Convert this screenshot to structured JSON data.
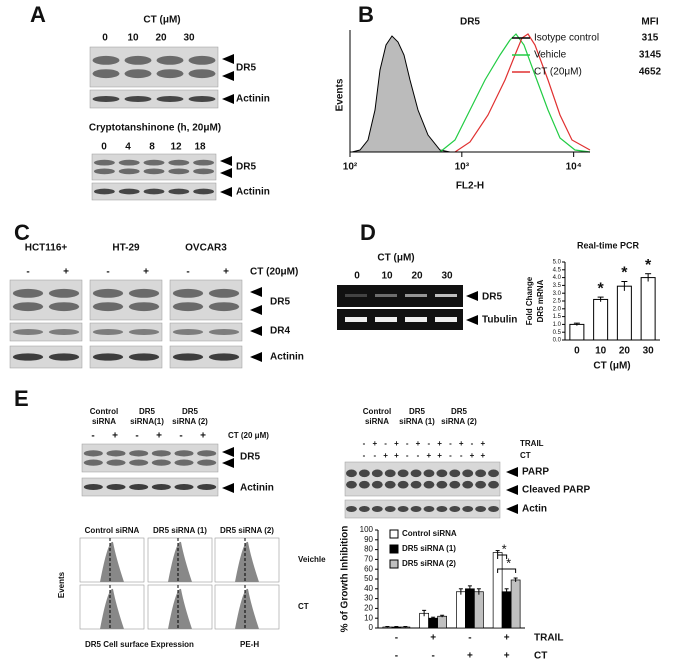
{
  "panel_a": {
    "letter": "A",
    "ct_label": "CT (μM)",
    "doses": [
      "0",
      "10",
      "20",
      "30"
    ],
    "bands": [
      "DR5",
      "Actinin"
    ],
    "time_label": "Cryptotanshinone (h, 20μM)",
    "times": [
      "0",
      "4",
      "8",
      "12",
      "18"
    ],
    "time_bands": [
      "DR5",
      "Actinin"
    ]
  },
  "panel_b": {
    "letter": "B",
    "title": "DR5",
    "ylabel": "Events",
    "xlabel": "FL2-H",
    "log_x": true,
    "xlim": [
      100,
      14000
    ],
    "xticks": [
      {
        "value": 100,
        "label": "10²"
      },
      {
        "value": 1000,
        "label": "10³"
      },
      {
        "value": 10000,
        "label": "10⁴"
      }
    ],
    "mfi_header": "MFI",
    "legend": [
      {
        "name": "Isotype control",
        "color": "#000000",
        "mfi": 315
      },
      {
        "name": "Vehicle",
        "color": "#22cc44",
        "mfi": 3145
      },
      {
        "name": "CT (20μM)",
        "color": "#e03030",
        "mfi": 4652
      }
    ]
  },
  "panel_c": {
    "letter": "C",
    "cell_lines": [
      "HCT116+",
      "HT-29",
      "OVCAR3"
    ],
    "signs": [
      "-",
      "+",
      "-",
      "+",
      "-",
      "+"
    ],
    "treatment": "CT (20μM)",
    "bands": [
      "DR5",
      "DR4",
      "Actinin"
    ]
  },
  "panel_d": {
    "letter": "D",
    "ct_label": "CT (μM)",
    "doses": [
      "0",
      "10",
      "20",
      "30"
    ],
    "bands": [
      "DR5",
      "Tubulin"
    ]
  },
  "panel_e": {
    "letter": "E",
    "left_blot": {
      "groups": [
        [
          "Control",
          "siRNA"
        ],
        [
          "DR5",
          "siRNA(1)"
        ],
        [
          "DR5",
          "siRNA (2)"
        ]
      ],
      "signs": [
        "-",
        "+",
        "-",
        "+",
        "-",
        "+"
      ],
      "treatment": "CT (20 μM)",
      "bands": [
        "DR5",
        "Actinin"
      ]
    },
    "right_blot": {
      "groups": [
        [
          "Control",
          "siRNA"
        ],
        [
          "DR5",
          "siRNA (1)"
        ],
        [
          "DR5",
          "siRNA (2)"
        ]
      ],
      "rows": [
        {
          "name": "TRAIL",
          "signs": [
            "-",
            "+",
            "-",
            "+",
            "-",
            "+",
            "-",
            "+",
            "-",
            "+",
            "-",
            "+"
          ]
        },
        {
          "name": "CT",
          "signs": [
            "-",
            "-",
            "+",
            "+",
            "-",
            "-",
            "+",
            "+",
            "-",
            "-",
            "+",
            "+"
          ]
        }
      ],
      "bands": [
        "PARP",
        "Cleaved PARP",
        "Actin"
      ]
    },
    "flow": {
      "columns": [
        "Control siRNA",
        "DR5 siRNA (1)",
        "DR5 siRNA (2)"
      ],
      "rows": [
        "Veichle",
        "CT"
      ],
      "ylabel": "Events",
      "xlabel": "DR5 Cell surface Expression",
      "xaxis": "PE-H"
    }
  },
  "chart_data": [
    {
      "type": "bar",
      "title": "Real-time PCR",
      "ylabel": [
        "Fold Change",
        "DR5 mRNA"
      ],
      "xlabel": "CT (μM)",
      "categories": [
        "0",
        "10",
        "20",
        "30"
      ],
      "values": [
        1.0,
        2.6,
        3.45,
        4.0
      ],
      "errors": [
        0.08,
        0.15,
        0.3,
        0.25
      ],
      "value_labels": [
        null,
        "*",
        "*",
        "*"
      ],
      "color": "#ffffff",
      "ylim": [
        0,
        5
      ],
      "yticks": [
        {
          "value": 0,
          "label": "0.0"
        },
        0.5,
        {
          "value": 1,
          "label": "1.0"
        },
        1.5,
        {
          "value": 2,
          "label": "2.0"
        },
        2.5,
        {
          "value": 3,
          "label": "3.0"
        },
        3.5,
        {
          "value": 4,
          "label": "4.0"
        },
        4.5,
        {
          "value": 5,
          "label": "5.0"
        }
      ]
    },
    {
      "type": "grouped_bar",
      "ylabel": "% of Growth Inhibition",
      "category_rows": [
        {
          "name": "TRAIL",
          "labels": [
            "-",
            "+",
            "-",
            "+"
          ]
        },
        {
          "name": "CT",
          "labels": [
            "-",
            "-",
            "+",
            "+"
          ]
        }
      ],
      "series": [
        {
          "name": "Control siRNA",
          "color": "#ffffff",
          "values": [
            1,
            15,
            37,
            77
          ],
          "errors": [
            0.5,
            3,
            3,
            2
          ]
        },
        {
          "name": "DR5 siRNA (1)",
          "color": "#000000",
          "values": [
            1,
            10,
            40,
            37
          ],
          "errors": [
            0.5,
            1,
            3,
            3
          ]
        },
        {
          "name": "DR5 siRNA (2)",
          "color": "#c0c0c0",
          "values": [
            1,
            12,
            37,
            49
          ],
          "errors": [
            0.5,
            1,
            3,
            2
          ]
        }
      ],
      "significance": [
        "*",
        "*"
      ],
      "ylim": [
        0,
        100
      ],
      "yticks": [
        0,
        10,
        20,
        30,
        40,
        50,
        60,
        70,
        80,
        90,
        100
      ]
    }
  ]
}
